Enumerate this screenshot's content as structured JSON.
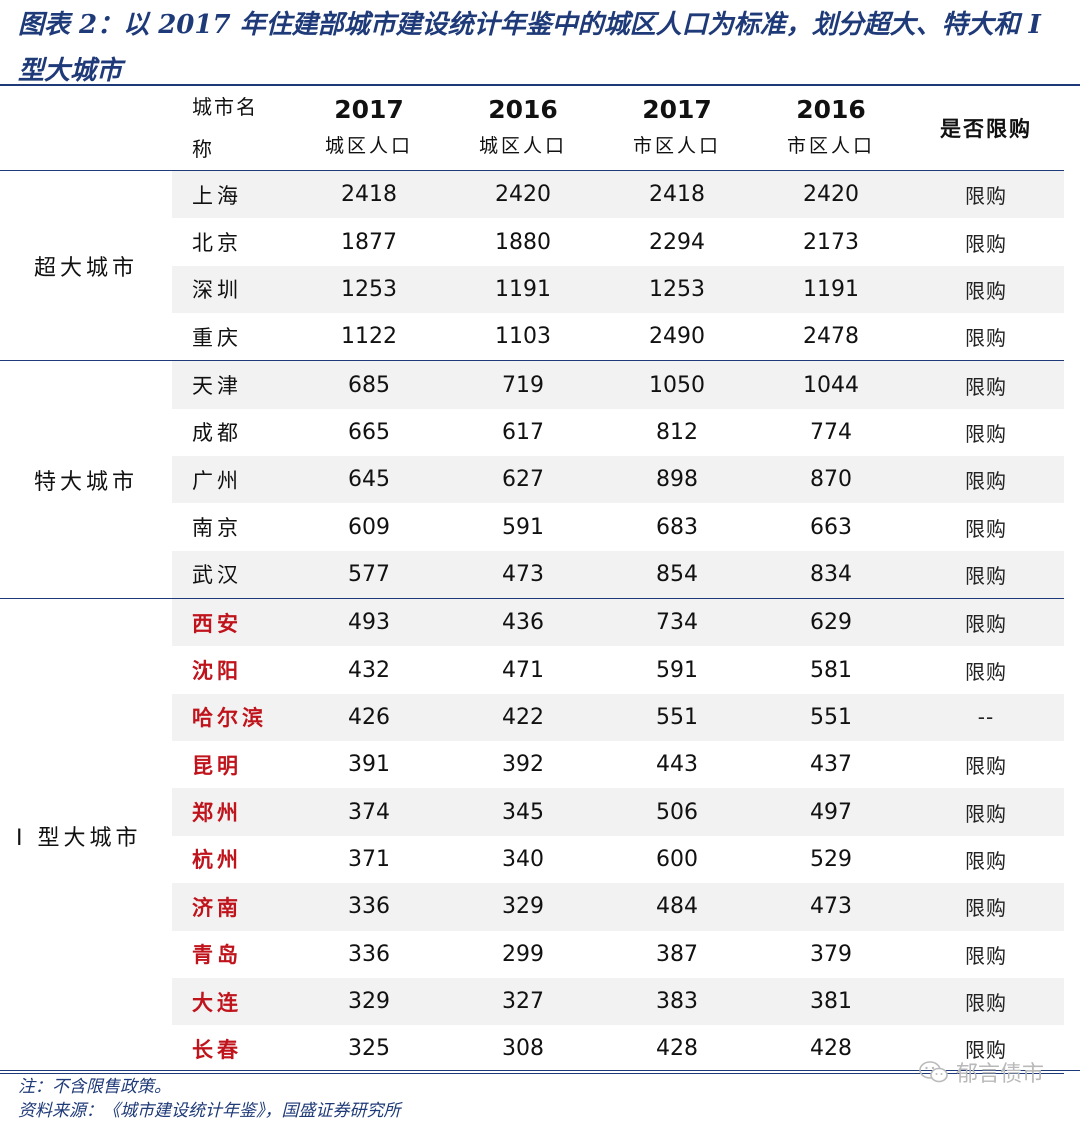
{
  "title": "图表 2：以 2017 年住建部城市建设统计年鉴中的城区人口为标准，划分超大、特大和 I 型大城市",
  "headers": {
    "city_line1": "城市名",
    "city_line2": "称",
    "col1_year": "2017",
    "col1_sub": "城区人口",
    "col2_year": "2016",
    "col2_sub": "城区人口",
    "col3_year": "2017",
    "col3_sub": "市区人口",
    "col4_year": "2016",
    "col4_sub": "市区人口",
    "limit": "是否限购"
  },
  "groups": [
    {
      "label": "超大城市",
      "rows": [
        {
          "city": "上海",
          "v": [
            "2418",
            "2420",
            "2418",
            "2420"
          ],
          "limit": "限购"
        },
        {
          "city": "北京",
          "v": [
            "1877",
            "1880",
            "2294",
            "2173"
          ],
          "limit": "限购"
        },
        {
          "city": "深圳",
          "v": [
            "1253",
            "1191",
            "1253",
            "1191"
          ],
          "limit": "限购"
        },
        {
          "city": "重庆",
          "v": [
            "1122",
            "1103",
            "2490",
            "2478"
          ],
          "limit": "限购"
        }
      ]
    },
    {
      "label": "特大城市",
      "rows": [
        {
          "city": "天津",
          "v": [
            "685",
            "719",
            "1050",
            "1044"
          ],
          "limit": "限购"
        },
        {
          "city": "成都",
          "v": [
            "665",
            "617",
            "812",
            "774"
          ],
          "limit": "限购"
        },
        {
          "city": "广州",
          "v": [
            "645",
            "627",
            "898",
            "870"
          ],
          "limit": "限购"
        },
        {
          "city": "南京",
          "v": [
            "609",
            "591",
            "683",
            "663"
          ],
          "limit": "限购"
        },
        {
          "city": "武汉",
          "v": [
            "577",
            "473",
            "854",
            "834"
          ],
          "limit": "限购"
        }
      ]
    },
    {
      "label": "I 型大城市",
      "rows": [
        {
          "city": "西安",
          "v": [
            "493",
            "436",
            "734",
            "629"
          ],
          "limit": "限购"
        },
        {
          "city": "沈阳",
          "v": [
            "432",
            "471",
            "591",
            "581"
          ],
          "limit": "限购"
        },
        {
          "city": "哈尔滨",
          "v": [
            "426",
            "422",
            "551",
            "551"
          ],
          "limit": "--"
        },
        {
          "city": "昆明",
          "v": [
            "391",
            "392",
            "443",
            "437"
          ],
          "limit": "限购"
        },
        {
          "city": "郑州",
          "v": [
            "374",
            "345",
            "506",
            "497"
          ],
          "limit": "限购"
        },
        {
          "city": "杭州",
          "v": [
            "371",
            "340",
            "600",
            "529"
          ],
          "limit": "限购"
        },
        {
          "city": "济南",
          "v": [
            "336",
            "329",
            "484",
            "473"
          ],
          "limit": "限购"
        },
        {
          "city": "青岛",
          "v": [
            "336",
            "299",
            "387",
            "379"
          ],
          "limit": "限购"
        },
        {
          "city": "大连",
          "v": [
            "329",
            "327",
            "383",
            "381"
          ],
          "limit": "限购"
        },
        {
          "city": "长春",
          "v": [
            "325",
            "308",
            "428",
            "428"
          ],
          "limit": "限购"
        }
      ]
    }
  ],
  "highlight_color": "#c0141c",
  "footnote": "注：不含限售政策。",
  "source": "资料来源：《城市建设统计年鉴》，国盛证券研究所",
  "watermark": "郁言债市"
}
